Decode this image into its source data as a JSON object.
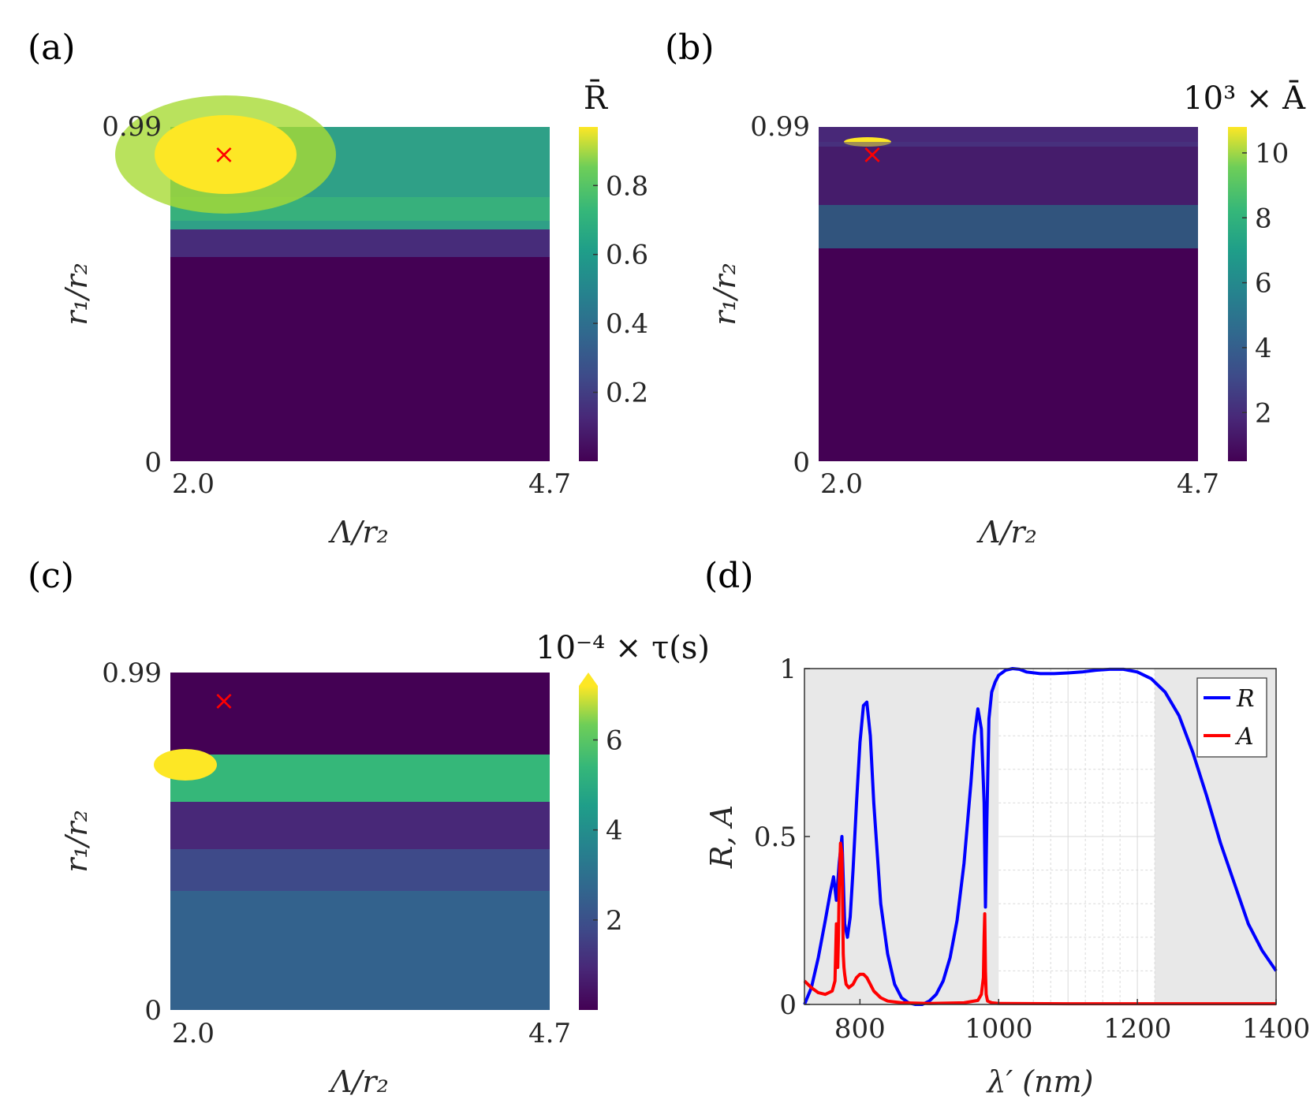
{
  "panels": [
    {
      "label": "(a)"
    },
    {
      "label": "(b)"
    },
    {
      "label": "(c)"
    },
    {
      "label": "(d)"
    }
  ],
  "chart_data": [
    {
      "type": "heatmap",
      "panel": "(a)",
      "title": "R̄",
      "xlabel": "Λ/r₂",
      "ylabel": "r₁/r₂",
      "x_ticks": [
        "2.0",
        "4.7"
      ],
      "y_ticks": [
        "0",
        "0.99"
      ],
      "xlim": [
        2.0,
        4.7
      ],
      "ylim": [
        0,
        0.99
      ],
      "colorbar": {
        "min": 0.0,
        "max": 0.97,
        "ticks": [
          0.2,
          0.4,
          0.6,
          0.8
        ],
        "tick_labels": [
          "0.2",
          "0.4",
          "0.6",
          "0.8"
        ],
        "extend": false
      },
      "marker": {
        "x": 2.37,
        "y": 0.91,
        "symbol": "×",
        "color": "#ff0000"
      },
      "colormap": "viridis",
      "description_terms": {
        "hot_spot": [
          2.37,
          0.91,
          0.97
        ],
        "band_y": 0.8,
        "cutoff_y": 0.66
      }
    },
    {
      "type": "heatmap",
      "panel": "(b)",
      "title": "10³ × Ā",
      "xlabel": "Λ/r₂",
      "ylabel": "r₁/r₂",
      "x_ticks": [
        "2.0",
        "4.7"
      ],
      "y_ticks": [
        "0",
        "0.99"
      ],
      "xlim": [
        2.0,
        4.7
      ],
      "ylim": [
        0,
        0.99
      ],
      "colorbar": {
        "min": 0.5,
        "max": 10.8,
        "ticks": [
          2,
          4,
          6,
          8,
          10
        ],
        "tick_labels": [
          "2",
          "4",
          "6",
          "8",
          "10"
        ],
        "extend": false
      },
      "marker": {
        "x": 2.37,
        "y": 0.91,
        "symbol": "×",
        "color": "#ff0000"
      },
      "colormap": "viridis"
    },
    {
      "type": "heatmap",
      "panel": "(c)",
      "title": "10⁻⁴ × τ(s)",
      "xlabel": "Λ/r₂",
      "ylabel": "r₁/r₂",
      "x_ticks": [
        "2.0",
        "4.7"
      ],
      "y_ticks": [
        "0",
        "0.99"
      ],
      "xlim": [
        2.0,
        4.7
      ],
      "ylim": [
        0,
        0.99
      ],
      "colorbar": {
        "min": 0.0,
        "max": 7.2,
        "ticks": [
          2,
          4,
          6
        ],
        "tick_labels": [
          "2",
          "4",
          "6"
        ],
        "extend": true
      },
      "marker": {
        "x": 2.37,
        "y": 0.91,
        "symbol": "×",
        "color": "#ff0000"
      },
      "colormap": "viridis"
    },
    {
      "type": "line",
      "panel": "(d)",
      "xlabel": "λ′ (nm)",
      "ylabel": "R, A",
      "xlim": [
        720,
        1400
      ],
      "ylim": [
        0,
        1
      ],
      "x_ticks": [
        800,
        1000,
        1200,
        1400
      ],
      "x_tick_labels": [
        "800",
        "1000",
        "1200",
        "1400"
      ],
      "y_ticks": [
        0,
        0.5,
        1
      ],
      "y_tick_labels": [
        "0",
        "0.5",
        "1"
      ],
      "shaded_regions": [
        [
          720,
          1000
        ],
        [
          1225,
          1400
        ]
      ],
      "legend": {
        "position": "top-right",
        "entries": [
          "R",
          "A"
        ]
      },
      "series": [
        {
          "name": "R",
          "color": "#0000ff",
          "x": [
            720,
            730,
            740,
            750,
            757,
            762,
            766,
            770,
            774,
            778,
            782,
            786,
            790,
            795,
            800,
            805,
            810,
            815,
            820,
            830,
            840,
            850,
            860,
            870,
            880,
            890,
            900,
            910,
            920,
            930,
            940,
            950,
            960,
            965,
            970,
            975,
            979,
            981,
            983,
            986,
            990,
            995,
            1000,
            1010,
            1020,
            1030,
            1040,
            1060,
            1080,
            1100,
            1120,
            1140,
            1160,
            1180,
            1200,
            1220,
            1240,
            1260,
            1280,
            1300,
            1320,
            1340,
            1360,
            1380,
            1400
          ],
          "values": [
            0.0,
            0.05,
            0.14,
            0.25,
            0.33,
            0.38,
            0.31,
            0.42,
            0.5,
            0.24,
            0.2,
            0.26,
            0.4,
            0.6,
            0.78,
            0.89,
            0.9,
            0.8,
            0.6,
            0.3,
            0.15,
            0.06,
            0.02,
            0.005,
            0.0,
            0.0,
            0.01,
            0.03,
            0.07,
            0.14,
            0.25,
            0.42,
            0.66,
            0.8,
            0.88,
            0.82,
            0.6,
            0.29,
            0.55,
            0.85,
            0.93,
            0.96,
            0.98,
            0.995,
            1.0,
            0.998,
            0.99,
            0.985,
            0.985,
            0.987,
            0.99,
            0.995,
            0.998,
            0.998,
            0.99,
            0.97,
            0.93,
            0.86,
            0.75,
            0.62,
            0.48,
            0.36,
            0.24,
            0.16,
            0.1
          ]
        },
        {
          "name": "A",
          "color": "#ff0000",
          "x": [
            720,
            730,
            740,
            750,
            760,
            764,
            766,
            767,
            768,
            769,
            770,
            772,
            774,
            775,
            776,
            777,
            778,
            780,
            784,
            790,
            795,
            800,
            805,
            810,
            815,
            820,
            830,
            840,
            860,
            900,
            950,
            970,
            975,
            978,
            979,
            980,
            981,
            982,
            984,
            990,
            1000,
            1100,
            1200,
            1300,
            1400
          ],
          "values": [
            0.07,
            0.05,
            0.035,
            0.03,
            0.04,
            0.07,
            0.24,
            0.12,
            0.11,
            0.2,
            0.35,
            0.48,
            0.45,
            0.3,
            0.15,
            0.11,
            0.09,
            0.06,
            0.05,
            0.06,
            0.08,
            0.09,
            0.09,
            0.08,
            0.06,
            0.04,
            0.02,
            0.01,
            0.005,
            0.003,
            0.005,
            0.012,
            0.03,
            0.08,
            0.2,
            0.27,
            0.1,
            0.03,
            0.01,
            0.005,
            0.003,
            0.002,
            0.002,
            0.002,
            0.002
          ]
        }
      ]
    }
  ]
}
